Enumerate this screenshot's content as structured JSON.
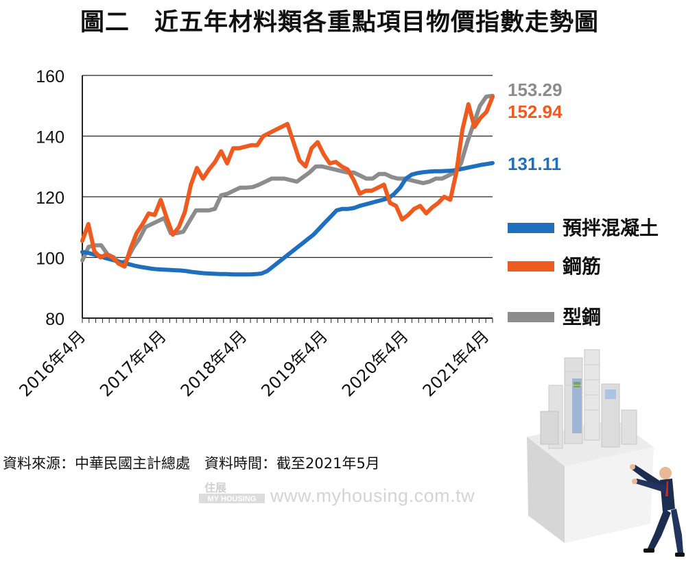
{
  "title": "圖二　近五年材料類各重點項目物價指數走勢圖",
  "source_note": "資料來源：中華民國主計總處　資料時間：截至2021年5月",
  "watermark": {
    "brand": "MY HOUSING",
    "url": "www.myhousing.com.tw"
  },
  "chart_data": {
    "type": "line",
    "title": "圖二　近五年材料類各重點項目物價指數走勢圖",
    "xlabel": "",
    "ylabel": "",
    "ylim": [
      80,
      160
    ],
    "yticks": [
      80,
      100,
      120,
      140,
      160
    ],
    "grid": true,
    "legend_position": "right",
    "x_tick_labels": [
      "2016年4月",
      "2017年4月",
      "2018年4月",
      "2019年4月",
      "2020年4月",
      "2021年4月"
    ],
    "x_start": "2016-04",
    "x_end": "2021-05",
    "series": [
      {
        "name": "預拌混凝土",
        "color": "#1f6fbf",
        "end_label": "131.11",
        "values": [
          101.8,
          101.5,
          101,
          100.5,
          99.8,
          99.3,
          98.8,
          98.3,
          97.8,
          97.3,
          96.9,
          96.6,
          96.3,
          96.1,
          96,
          95.9,
          95.8,
          95.7,
          95.5,
          95.2,
          95,
          94.8,
          94.7,
          94.6,
          94.5,
          94.5,
          94.4,
          94.4,
          94.4,
          94.4,
          94.5,
          94.7,
          95.5,
          97,
          98.5,
          100,
          101.5,
          103,
          104.5,
          106,
          107.5,
          109.5,
          111.5,
          113.5,
          115.5,
          116,
          116,
          116.3,
          117,
          117.5,
          118,
          118.5,
          119,
          119.5,
          121,
          123,
          126,
          127.3,
          127.8,
          128.1,
          128.3,
          128.4,
          128.4,
          128.5,
          128.6,
          128.9,
          129.3,
          129.7,
          130.1,
          130.5,
          130.8,
          131.11
        ]
      },
      {
        "name": "鋼筋",
        "color": "#ef5a1f",
        "end_label": "152.94",
        "values": [
          105.5,
          111,
          102,
          100,
          101,
          100,
          98,
          97,
          103,
          108,
          111,
          114.5,
          114,
          119,
          113,
          107.5,
          110,
          115,
          124,
          129.5,
          126,
          129,
          131.5,
          135,
          131,
          136,
          136,
          136.5,
          137,
          137,
          140,
          141,
          142,
          143,
          144,
          138,
          132,
          130,
          136,
          138,
          134,
          131,
          131.5,
          130,
          129,
          125.5,
          121,
          122,
          122,
          123,
          124,
          118,
          117,
          112.5,
          114,
          116,
          117,
          114.5,
          116.5,
          118,
          120,
          119,
          128,
          142,
          150.5,
          143,
          146,
          148,
          152.94
        ]
      },
      {
        "name": "型鋼",
        "color": "#8c8c8c",
        "end_label": "153.29",
        "values": [
          99,
          103.5,
          104,
          104,
          101,
          100,
          98,
          99,
          103,
          106,
          110,
          111,
          112,
          113,
          108,
          108,
          108.5,
          112,
          115.5,
          115.5,
          115.5,
          116,
          120.5,
          121,
          122,
          123,
          123,
          123.2,
          124,
          125,
          126,
          126,
          126,
          125.5,
          125,
          126.5,
          128,
          130,
          130,
          129.5,
          129,
          128.5,
          128,
          128,
          127,
          126,
          126,
          127.5,
          127.5,
          126.5,
          126,
          126,
          125.5,
          125,
          124.5,
          125,
          126,
          126,
          127,
          128,
          131,
          138,
          144,
          150,
          153,
          153.29
        ]
      }
    ]
  }
}
